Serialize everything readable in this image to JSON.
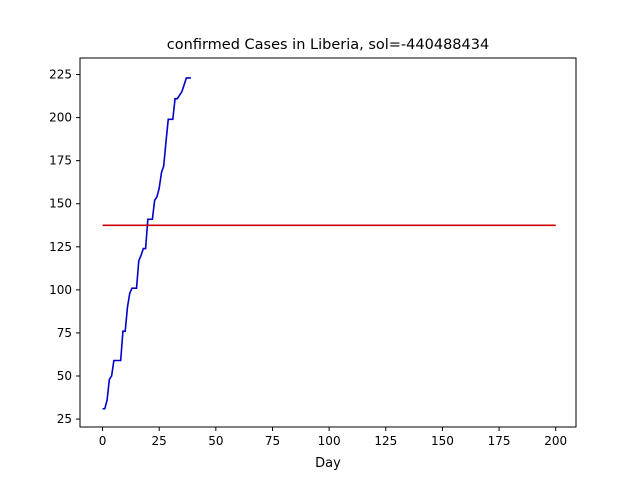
{
  "chart_data": {
    "type": "line",
    "title": "confirmed Cases in Liberia, sol=-440488434",
    "xlabel": "Day",
    "ylabel": "",
    "xlim": [
      -9.95,
      208.95
    ],
    "ylim": [
      20.4,
      234.6
    ],
    "xticks": [
      0,
      25,
      50,
      75,
      100,
      125,
      150,
      175,
      200
    ],
    "yticks": [
      25,
      50,
      75,
      100,
      125,
      150,
      175,
      200,
      225
    ],
    "grid": false,
    "series": [
      {
        "color": "#0000cc",
        "x": [
          0,
          1,
          2,
          3,
          4,
          5,
          6,
          7,
          8,
          9,
          10,
          11,
          12,
          13,
          14,
          15,
          16,
          17,
          18,
          19,
          20,
          21,
          22,
          23,
          24,
          25,
          26,
          27,
          28,
          29,
          30,
          31,
          32,
          33,
          34,
          35,
          36,
          37,
          38,
          39
        ],
        "y": [
          31,
          31,
          36,
          48,
          50,
          59,
          59,
          59,
          59,
          76,
          76,
          90,
          98,
          101,
          101,
          101,
          117,
          120,
          124,
          124,
          141,
          141,
          141,
          152,
          154,
          159,
          168,
          172,
          186,
          199,
          199,
          199,
          211,
          211,
          213,
          215,
          219,
          223,
          223,
          223
        ]
      },
      {
        "color": "#cc0000",
        "x": [
          0,
          200
        ],
        "y": [
          137.5,
          137.5
        ]
      }
    ]
  }
}
